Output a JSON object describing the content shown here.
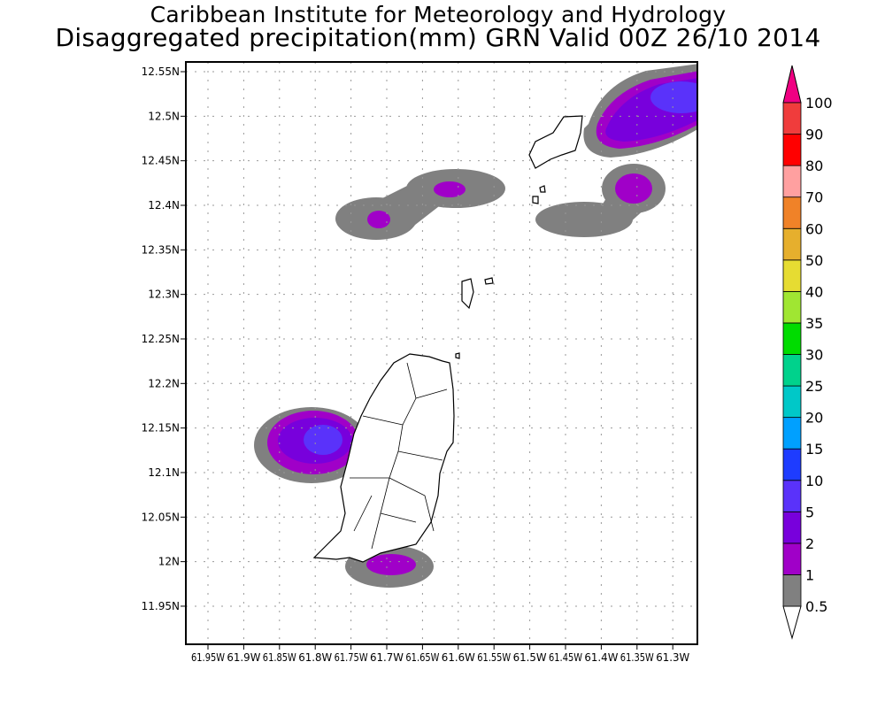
{
  "header": {
    "title_line1": "Caribbean Institute for Meteorology and Hydrology",
    "title_line2": "Disaggregated precipitation(mm) GRN Valid 00Z 26/10 2014"
  },
  "map": {
    "region": "GRN",
    "lat_ticks": [
      {
        "value": 12.55,
        "label": "12.55N"
      },
      {
        "value": 12.5,
        "label": "12.5N"
      },
      {
        "value": 12.45,
        "label": "12.45N"
      },
      {
        "value": 12.4,
        "label": "12.4N"
      },
      {
        "value": 12.35,
        "label": "12.35N"
      },
      {
        "value": 12.3,
        "label": "12.3N"
      },
      {
        "value": 12.25,
        "label": "12.25N"
      },
      {
        "value": 12.2,
        "label": "12.2N"
      },
      {
        "value": 12.15,
        "label": "12.15N"
      },
      {
        "value": 12.1,
        "label": "12.1N"
      },
      {
        "value": 12.05,
        "label": "12.05N"
      },
      {
        "value": 12.0,
        "label": "12N"
      },
      {
        "value": 11.95,
        "label": "11.95N"
      }
    ],
    "lon_ticks": [
      {
        "value": 61.95,
        "label": "61.95W"
      },
      {
        "value": 61.9,
        "label": "61.9W"
      },
      {
        "value": 61.85,
        "label": "61.85W"
      },
      {
        "value": 61.8,
        "label": "61.8W"
      },
      {
        "value": 61.75,
        "label": "61.75W"
      },
      {
        "value": 61.7,
        "label": "61.7W"
      },
      {
        "value": 61.65,
        "label": "61.65W"
      },
      {
        "value": 61.6,
        "label": "61.6W"
      },
      {
        "value": 61.55,
        "label": "61.55W"
      },
      {
        "value": 61.5,
        "label": "61.5W"
      },
      {
        "value": 61.45,
        "label": "61.45W"
      },
      {
        "value": 61.4,
        "label": "61.4W"
      },
      {
        "value": 61.35,
        "label": "61.35W"
      },
      {
        "value": 61.3,
        "label": "61.3W"
      }
    ]
  },
  "colorbar": {
    "labels": [
      "0.5",
      "1",
      "2",
      "5",
      "10",
      "15",
      "20",
      "25",
      "30",
      "35",
      "40",
      "50",
      "60",
      "70",
      "80",
      "90",
      "100"
    ],
    "bins": [
      {
        "from": "0.5",
        "to": "1",
        "color": "#808080"
      },
      {
        "from": "1",
        "to": "2",
        "color": "#a000c8"
      },
      {
        "from": "2",
        "to": "5",
        "color": "#7800dc"
      },
      {
        "from": "5",
        "to": "10",
        "color": "#5a32fa"
      },
      {
        "from": "10",
        "to": "15",
        "color": "#1e3cff"
      },
      {
        "from": "15",
        "to": "20",
        "color": "#00a0ff"
      },
      {
        "from": "20",
        "to": "25",
        "color": "#00c8c8"
      },
      {
        "from": "25",
        "to": "30",
        "color": "#00d28c"
      },
      {
        "from": "30",
        "to": "35",
        "color": "#00dc00"
      },
      {
        "from": "35",
        "to": "40",
        "color": "#a0e632"
      },
      {
        "from": "40",
        "to": "50",
        "color": "#e6dc32"
      },
      {
        "from": "50",
        "to": "60",
        "color": "#e6af2d"
      },
      {
        "from": "60",
        "to": "70",
        "color": "#f08228"
      },
      {
        "from": "70",
        "to": "80",
        "color": "#ffa0a0"
      },
      {
        "from": "80",
        "to": "90",
        "color": "#ff0000"
      },
      {
        "from": "90",
        "to": "100",
        "color": "#f03c3c"
      }
    ],
    "over_color": "#f00082",
    "under_color": "#ffffff"
  }
}
